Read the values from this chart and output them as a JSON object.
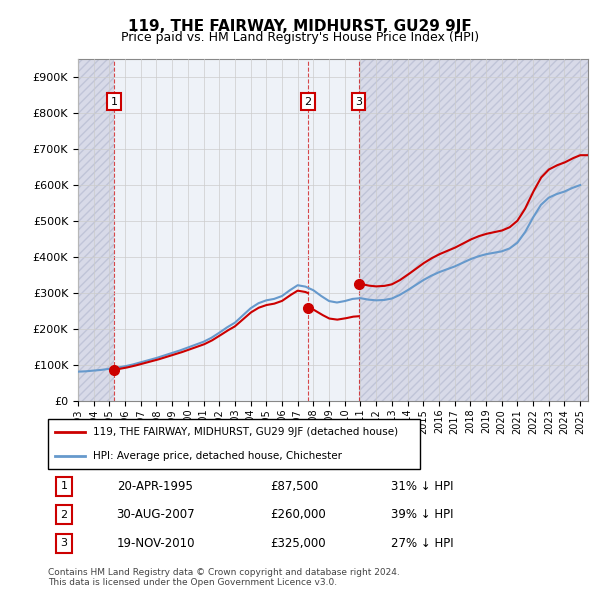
{
  "title": "119, THE FAIRWAY, MIDHURST, GU29 9JF",
  "subtitle": "Price paid vs. HM Land Registry's House Price Index (HPI)",
  "property_label": "119, THE FAIRWAY, MIDHURST, GU29 9JF (detached house)",
  "hpi_label": "HPI: Average price, detached house, Chichester",
  "footer1": "Contains HM Land Registry data © Crown copyright and database right 2024.",
  "footer2": "This data is licensed under the Open Government Licence v3.0.",
  "transactions": [
    {
      "num": 1,
      "date": "20-APR-1995",
      "price": 87500,
      "pct": "31% ↓ HPI",
      "year": 1995.3
    },
    {
      "num": 2,
      "date": "30-AUG-2007",
      "price": 260000,
      "pct": "39% ↓ HPI",
      "year": 2007.66
    },
    {
      "num": 3,
      "date": "19-NOV-2010",
      "price": 325000,
      "pct": "27% ↓ HPI",
      "year": 2010.88
    }
  ],
  "hpi_color": "#6699cc",
  "property_color": "#cc0000",
  "vline_color": "#cc0000",
  "ylim": [
    0,
    950000
  ],
  "xlim_start": 1993,
  "xlim_end": 2025.5,
  "hpi_years": [
    1993,
    1993.5,
    1994,
    1994.5,
    1995,
    1995.5,
    1996,
    1996.5,
    1997,
    1997.5,
    1998,
    1998.5,
    1999,
    1999.5,
    2000,
    2000.5,
    2001,
    2001.5,
    2002,
    2002.5,
    2003,
    2003.5,
    2004,
    2004.5,
    2005,
    2005.5,
    2006,
    2006.5,
    2007,
    2007.5,
    2008,
    2008.5,
    2009,
    2009.5,
    2010,
    2010.5,
    2011,
    2011.5,
    2012,
    2012.5,
    2013,
    2013.5,
    2014,
    2014.5,
    2015,
    2015.5,
    2016,
    2016.5,
    2017,
    2017.5,
    2018,
    2018.5,
    2019,
    2019.5,
    2020,
    2020.5,
    2021,
    2021.5,
    2022,
    2022.5,
    2023,
    2023.5,
    2024,
    2024.5,
    2025
  ],
  "hpi_values": [
    82000,
    83000,
    85000,
    87000,
    90000,
    93000,
    97000,
    102000,
    108000,
    114000,
    120000,
    127000,
    134000,
    141000,
    149000,
    157000,
    165000,
    176000,
    190000,
    205000,
    218000,
    238000,
    258000,
    272000,
    280000,
    284000,
    292000,
    308000,
    322000,
    318000,
    308000,
    292000,
    278000,
    274000,
    278000,
    284000,
    286000,
    282000,
    280000,
    281000,
    285000,
    295000,
    308000,
    322000,
    336000,
    348000,
    358000,
    366000,
    374000,
    384000,
    394000,
    402000,
    408000,
    412000,
    416000,
    424000,
    440000,
    470000,
    510000,
    545000,
    565000,
    575000,
    582000,
    592000,
    600000
  ],
  "property_years": [
    1995.3,
    2007.66,
    2010.88
  ],
  "property_values": [
    87500,
    260000,
    325000
  ]
}
